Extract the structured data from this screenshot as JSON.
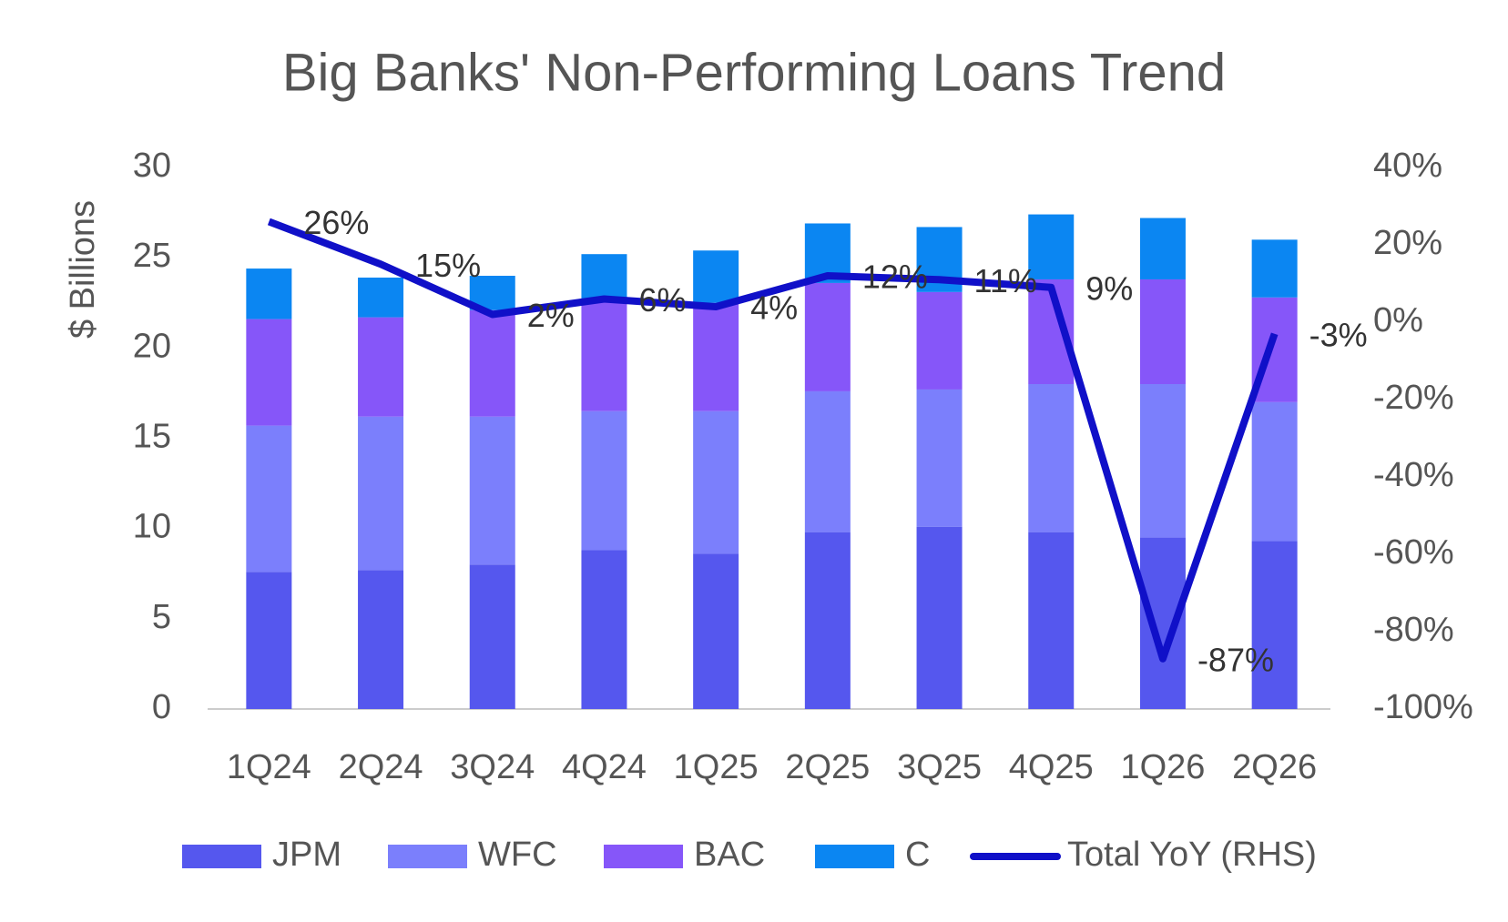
{
  "chart_data": {
    "type": "bar",
    "stacked": true,
    "title": "Big Banks' Non-Performing Loans Trend",
    "y_label": "$ Billions",
    "categories": [
      "1Q24",
      "2Q24",
      "3Q24",
      "4Q24",
      "1Q25",
      "2Q25",
      "3Q25",
      "4Q25",
      "1Q26",
      "2Q26"
    ],
    "series": [
      {
        "name": "JPM",
        "type": "bar",
        "color": "#5557ee",
        "values": [
          7.6,
          7.7,
          8.0,
          8.8,
          8.6,
          9.8,
          10.1,
          9.8,
          9.5,
          9.3
        ]
      },
      {
        "name": "WFC",
        "type": "bar",
        "color": "#7b7ffc",
        "values": [
          8.1,
          8.5,
          8.2,
          7.7,
          7.9,
          7.8,
          7.6,
          8.2,
          8.5,
          7.7
        ]
      },
      {
        "name": "BAC",
        "type": "bar",
        "color": "#8656f9",
        "values": [
          5.9,
          5.5,
          5.9,
          6.1,
          6.0,
          6.0,
          5.4,
          5.8,
          5.8,
          5.8
        ]
      },
      {
        "name": "C",
        "type": "bar",
        "color": "#0b86f2",
        "values": [
          2.8,
          2.2,
          1.9,
          2.6,
          2.9,
          3.3,
          3.6,
          3.6,
          3.4,
          3.2
        ]
      },
      {
        "name": "Total YoY (RHS)",
        "type": "line",
        "axis": "y2",
        "color": "#1010c8",
        "values": [
          26,
          15,
          2,
          6,
          4,
          12,
          11,
          9,
          -87,
          -3
        ],
        "value_labels": [
          "26%",
          "15%",
          "2%",
          "6%",
          "4%",
          "12%",
          "11%",
          "9%",
          "-87%",
          "-3%"
        ]
      }
    ],
    "ylim": [
      0,
      30
    ],
    "yticks": [
      0,
      5,
      10,
      15,
      20,
      25,
      30
    ],
    "y2lim": [
      -100,
      40
    ],
    "y2ticks": [
      {
        "value": -100,
        "label": "-100%"
      },
      {
        "value": -80,
        "label": "-80%"
      },
      {
        "value": -60,
        "label": "-60%"
      },
      {
        "value": -40,
        "label": "-40%"
      },
      {
        "value": -20,
        "label": "-20%"
      },
      {
        "value": 0,
        "label": "0%"
      },
      {
        "value": 20,
        "label": "20%"
      },
      {
        "value": 40,
        "label": "40%"
      }
    ],
    "grid": false,
    "legend": "bottom"
  }
}
